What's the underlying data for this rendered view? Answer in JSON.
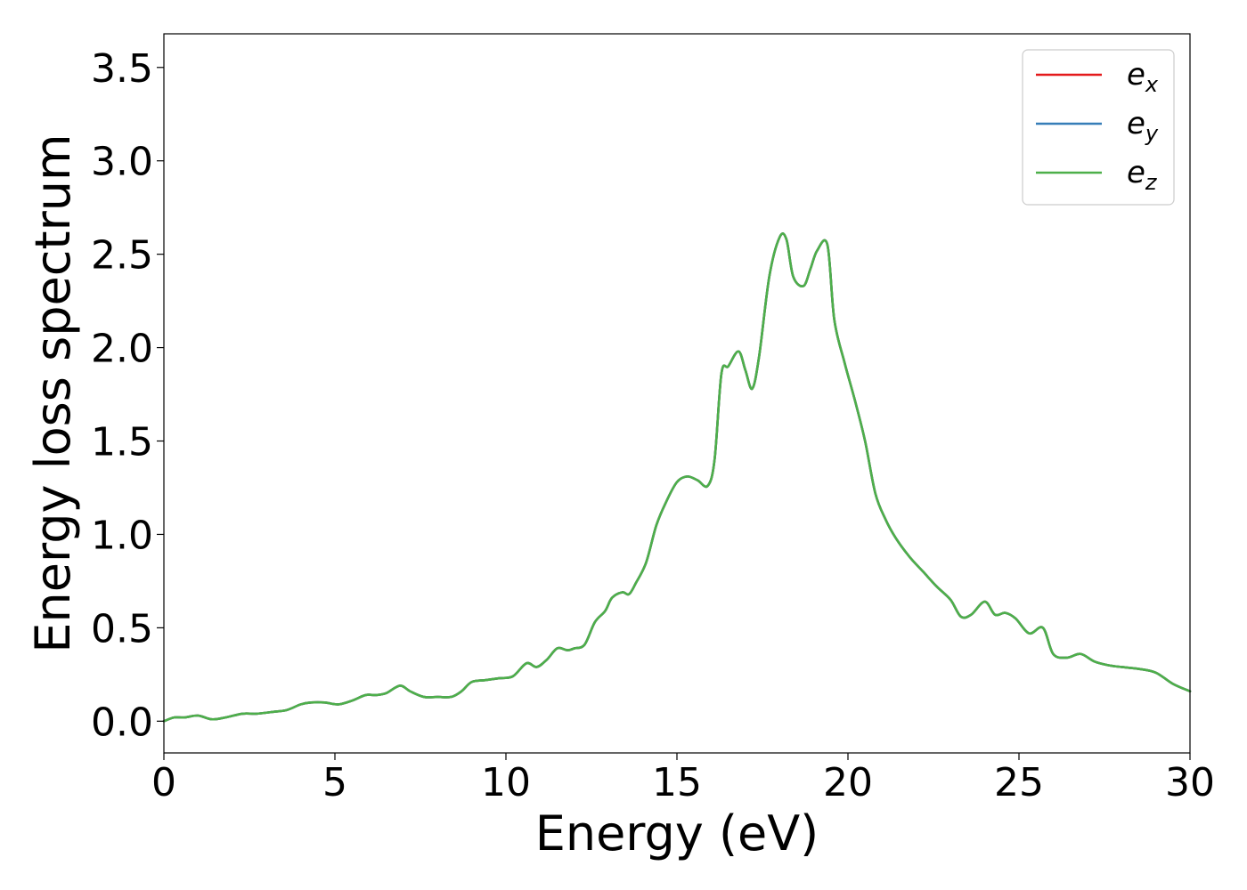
{
  "chart_data": {
    "type": "line",
    "xlabel": "Energy (eV)",
    "ylabel": "Energy loss spectrum",
    "xlim": [
      0,
      30
    ],
    "ylim": [
      -0.17,
      3.68
    ],
    "xticks": [
      0,
      5,
      10,
      15,
      20,
      25,
      30
    ],
    "xtick_labels": [
      "0",
      "5",
      "10",
      "15",
      "20",
      "25",
      "30"
    ],
    "yticks": [
      0.0,
      0.5,
      1.0,
      1.5,
      2.0,
      2.5,
      3.0,
      3.5
    ],
    "ytick_labels": [
      "0.0",
      "0.5",
      "1.0",
      "1.5",
      "2.0",
      "2.5",
      "3.0",
      "3.5"
    ],
    "grid": false,
    "legend_position": "top-right",
    "x": [
      0,
      0.3,
      0.6,
      1.0,
      1.4,
      1.8,
      2.3,
      2.7,
      3.2,
      3.6,
      4.0,
      4.3,
      4.7,
      5.1,
      5.5,
      5.9,
      6.2,
      6.5,
      6.9,
      7.2,
      7.6,
      8.0,
      8.4,
      8.7,
      9.0,
      9.4,
      9.8,
      10.2,
      10.6,
      10.9,
      11.2,
      11.5,
      11.8,
      12.0,
      12.3,
      12.6,
      12.9,
      13.1,
      13.4,
      13.6,
      13.8,
      14.1,
      14.4,
      14.7,
      15.0,
      15.3,
      15.6,
      15.9,
      16.1,
      16.3,
      16.5,
      16.8,
      17.0,
      17.2,
      17.4,
      17.7,
      18.0,
      18.2,
      18.4,
      18.7,
      18.9,
      19.1,
      19.4,
      19.6,
      19.9,
      20.2,
      20.5,
      20.8,
      21.1,
      21.4,
      21.8,
      22.2,
      22.6,
      23.0,
      23.3,
      23.6,
      24.0,
      24.3,
      24.6,
      24.9,
      25.3,
      25.7,
      26.0,
      26.4,
      26.8,
      27.2,
      27.6,
      28.0,
      28.5,
      29.0,
      29.5,
      30.0
    ],
    "series": [
      {
        "name": "e_x",
        "color": "#e41a1c",
        "values": [
          0.0,
          0.02,
          0.02,
          0.03,
          0.01,
          0.02,
          0.04,
          0.04,
          0.05,
          0.06,
          0.09,
          0.1,
          0.1,
          0.09,
          0.11,
          0.14,
          0.14,
          0.15,
          0.19,
          0.16,
          0.13,
          0.13,
          0.13,
          0.16,
          0.21,
          0.22,
          0.23,
          0.24,
          0.31,
          0.29,
          0.33,
          0.39,
          0.38,
          0.39,
          0.41,
          0.53,
          0.59,
          0.66,
          0.69,
          0.68,
          0.74,
          0.85,
          1.05,
          1.18,
          1.28,
          1.31,
          1.29,
          1.26,
          1.4,
          1.86,
          1.9,
          1.98,
          1.88,
          1.78,
          1.95,
          2.38,
          2.59,
          2.58,
          2.38,
          2.33,
          2.42,
          2.52,
          2.55,
          2.15,
          1.92,
          1.72,
          1.5,
          1.22,
          1.08,
          0.98,
          0.88,
          0.8,
          0.72,
          0.65,
          0.56,
          0.57,
          0.64,
          0.57,
          0.58,
          0.55,
          0.47,
          0.5,
          0.36,
          0.34,
          0.36,
          0.32,
          0.3,
          0.29,
          0.28,
          0.26,
          0.2,
          0.16
        ]
      },
      {
        "name": "e_y",
        "color": "#377eb8",
        "values": [
          0.0,
          0.02,
          0.02,
          0.03,
          0.01,
          0.02,
          0.04,
          0.04,
          0.05,
          0.06,
          0.09,
          0.1,
          0.1,
          0.09,
          0.11,
          0.14,
          0.14,
          0.15,
          0.19,
          0.16,
          0.13,
          0.13,
          0.13,
          0.16,
          0.21,
          0.22,
          0.23,
          0.24,
          0.31,
          0.29,
          0.33,
          0.39,
          0.38,
          0.39,
          0.41,
          0.53,
          0.59,
          0.66,
          0.69,
          0.68,
          0.74,
          0.85,
          1.05,
          1.18,
          1.28,
          1.31,
          1.29,
          1.26,
          1.4,
          1.86,
          1.9,
          1.98,
          1.88,
          1.78,
          1.95,
          2.38,
          2.59,
          2.58,
          2.38,
          2.33,
          2.42,
          2.52,
          2.55,
          2.15,
          1.92,
          1.72,
          1.5,
          1.22,
          1.08,
          0.98,
          0.88,
          0.8,
          0.72,
          0.65,
          0.56,
          0.57,
          0.64,
          0.57,
          0.58,
          0.55,
          0.47,
          0.5,
          0.36,
          0.34,
          0.36,
          0.32,
          0.3,
          0.29,
          0.28,
          0.26,
          0.2,
          0.16
        ]
      },
      {
        "name": "e_z",
        "color": "#4daf4a",
        "values": [
          0.0,
          0.02,
          0.02,
          0.03,
          0.01,
          0.02,
          0.04,
          0.04,
          0.05,
          0.06,
          0.09,
          0.1,
          0.1,
          0.09,
          0.11,
          0.14,
          0.14,
          0.15,
          0.19,
          0.16,
          0.13,
          0.13,
          0.13,
          0.16,
          0.21,
          0.22,
          0.23,
          0.24,
          0.31,
          0.29,
          0.33,
          0.39,
          0.38,
          0.39,
          0.41,
          0.53,
          0.59,
          0.66,
          0.69,
          0.68,
          0.74,
          0.85,
          1.05,
          1.18,
          1.28,
          1.31,
          1.29,
          1.26,
          1.4,
          1.86,
          1.9,
          1.98,
          1.88,
          1.78,
          1.95,
          2.38,
          2.59,
          2.58,
          2.38,
          2.33,
          2.42,
          2.52,
          2.55,
          2.15,
          1.92,
          1.72,
          1.5,
          1.22,
          1.08,
          0.98,
          0.88,
          0.8,
          0.72,
          0.65,
          0.56,
          0.57,
          0.64,
          0.57,
          0.58,
          0.55,
          0.47,
          0.5,
          0.36,
          0.34,
          0.36,
          0.32,
          0.3,
          0.29,
          0.28,
          0.26,
          0.2,
          0.16
        ]
      }
    ],
    "legend": [
      {
        "base": "e",
        "sub": "x"
      },
      {
        "base": "e",
        "sub": "y"
      },
      {
        "base": "e",
        "sub": "z"
      }
    ]
  }
}
